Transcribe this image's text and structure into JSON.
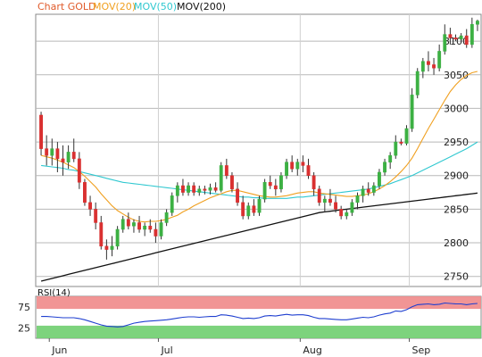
{
  "chart_data": [
    {
      "type": "candlestick",
      "legend": [
        {
          "name": "Chart GOLD",
          "color": "#e05a2a"
        },
        {
          "name": "MOV(20)",
          "color": "#f0a020"
        },
        {
          "name": "MOV(50)",
          "color": "#30c8d0"
        },
        {
          "name": "MOV(200)",
          "color": "#111111"
        }
      ],
      "ylim": [
        2735,
        3140
      ],
      "yticks": [
        2750,
        2800,
        2850,
        2900,
        2950,
        3000,
        3050,
        3100
      ],
      "grid": true,
      "y_axis_side": "right",
      "colors": {
        "up": "#3cb043",
        "down": "#d93030"
      },
      "candles": [
        [
          2990,
          2995,
          2930,
          2940
        ],
        [
          2940,
          2960,
          2915,
          2930
        ],
        [
          2930,
          2955,
          2915,
          2940
        ],
        [
          2940,
          2950,
          2905,
          2925
        ],
        [
          2925,
          2945,
          2900,
          2920
        ],
        [
          2920,
          2945,
          2910,
          2935
        ],
        [
          2935,
          2955,
          2920,
          2925
        ],
        [
          2925,
          2935,
          2880,
          2890
        ],
        [
          2890,
          2895,
          2855,
          2860
        ],
        [
          2860,
          2870,
          2840,
          2850
        ],
        [
          2850,
          2860,
          2820,
          2830
        ],
        [
          2830,
          2840,
          2790,
          2795
        ],
        [
          2795,
          2805,
          2775,
          2790
        ],
        [
          2790,
          2810,
          2780,
          2795
        ],
        [
          2795,
          2825,
          2790,
          2820
        ],
        [
          2820,
          2840,
          2815,
          2835
        ],
        [
          2835,
          2845,
          2820,
          2825
        ],
        [
          2825,
          2835,
          2815,
          2830
        ],
        [
          2830,
          2840,
          2815,
          2820
        ],
        [
          2820,
          2830,
          2810,
          2825
        ],
        [
          2825,
          2835,
          2815,
          2820
        ],
        [
          2820,
          2830,
          2800,
          2810
        ],
        [
          2810,
          2835,
          2805,
          2830
        ],
        [
          2830,
          2850,
          2825,
          2845
        ],
        [
          2845,
          2875,
          2840,
          2870
        ],
        [
          2870,
          2890,
          2860,
          2885
        ],
        [
          2885,
          2895,
          2870,
          2875
        ],
        [
          2875,
          2890,
          2870,
          2885
        ],
        [
          2885,
          2890,
          2870,
          2875
        ],
        [
          2875,
          2885,
          2870,
          2880
        ],
        [
          2880,
          2885,
          2872,
          2878
        ],
        [
          2878,
          2888,
          2872,
          2882
        ],
        [
          2882,
          2890,
          2875,
          2878
        ],
        [
          2878,
          2920,
          2875,
          2915
        ],
        [
          2915,
          2925,
          2895,
          2900
        ],
        [
          2900,
          2905,
          2875,
          2880
        ],
        [
          2880,
          2890,
          2855,
          2860
        ],
        [
          2860,
          2870,
          2835,
          2840
        ],
        [
          2840,
          2860,
          2835,
          2855
        ],
        [
          2855,
          2865,
          2840,
          2845
        ],
        [
          2845,
          2870,
          2840,
          2865
        ],
        [
          2865,
          2895,
          2860,
          2890
        ],
        [
          2890,
          2900,
          2880,
          2885
        ],
        [
          2885,
          2895,
          2870,
          2880
        ],
        [
          2880,
          2905,
          2875,
          2900
        ],
        [
          2900,
          2925,
          2895,
          2920
        ],
        [
          2920,
          2930,
          2905,
          2910
        ],
        [
          2910,
          2925,
          2900,
          2920
        ],
        [
          2920,
          2930,
          2905,
          2915
        ],
        [
          2915,
          2925,
          2895,
          2900
        ],
        [
          2900,
          2905,
          2870,
          2880
        ],
        [
          2880,
          2885,
          2855,
          2860
        ],
        [
          2860,
          2870,
          2845,
          2865
        ],
        [
          2865,
          2880,
          2855,
          2860
        ],
        [
          2860,
          2870,
          2845,
          2850
        ],
        [
          2850,
          2855,
          2835,
          2840
        ],
        [
          2840,
          2850,
          2835,
          2845
        ],
        [
          2845,
          2865,
          2840,
          2860
        ],
        [
          2860,
          2875,
          2850,
          2870
        ],
        [
          2870,
          2885,
          2860,
          2880
        ],
        [
          2880,
          2890,
          2870,
          2875
        ],
        [
          2875,
          2890,
          2870,
          2885
        ],
        [
          2885,
          2910,
          2880,
          2905
        ],
        [
          2905,
          2925,
          2900,
          2920
        ],
        [
          2920,
          2935,
          2910,
          2930
        ],
        [
          2930,
          2960,
          2925,
          2950
        ],
        [
          2950,
          2955,
          2945,
          2948
        ],
        [
          2948,
          2975,
          2945,
          2970
        ],
        [
          2970,
          3030,
          2965,
          3020
        ],
        [
          3020,
          3060,
          3015,
          3055
        ],
        [
          3055,
          3075,
          3045,
          3070
        ],
        [
          3070,
          3085,
          3055,
          3065
        ],
        [
          3065,
          3075,
          3050,
          3060
        ],
        [
          3060,
          3095,
          3055,
          3085
        ],
        [
          3085,
          3125,
          3080,
          3110
        ],
        [
          3110,
          3120,
          3095,
          3105
        ],
        [
          3105,
          3110,
          3100,
          3103
        ],
        [
          3103,
          3112,
          3098,
          3108
        ],
        [
          3108,
          3118,
          3090,
          3095
        ],
        [
          3095,
          3135,
          3090,
          3125
        ],
        [
          3125,
          3132,
          3115,
          3130
        ]
      ],
      "mov20": [
        2930,
        2928,
        2926,
        2923,
        2920,
        2916,
        2912,
        2906,
        2899,
        2891,
        2883,
        2873,
        2864,
        2855,
        2848,
        2843,
        2838,
        2834,
        2832,
        2831,
        2832,
        2832,
        2833,
        2835,
        2838,
        2841,
        2846,
        2850,
        2855,
        2859,
        2863,
        2867,
        2870,
        2873,
        2876,
        2878,
        2878,
        2876,
        2874,
        2872,
        2870,
        2869,
        2868,
        2868,
        2869,
        2870,
        2872,
        2874,
        2875,
        2876,
        2876,
        2874,
        2873,
        2872,
        2871,
        2870,
        2869,
        2869,
        2870,
        2871,
        2873,
        2876,
        2880,
        2885,
        2891,
        2898,
        2906,
        2915,
        2926,
        2940,
        2955,
        2970,
        2984,
        2998,
        3012,
        3025,
        3035,
        3043,
        3049,
        3053,
        3055
      ],
      "mov50": [
        2915,
        2914,
        2913,
        2912,
        2911,
        2909,
        2908,
        2906,
        2904,
        2902,
        2900,
        2898,
        2896,
        2894,
        2892,
        2890,
        2889,
        2888,
        2887,
        2886,
        2885,
        2884,
        2883,
        2882,
        2881,
        2880,
        2879,
        2878,
        2877,
        2876,
        2875,
        2874,
        2873,
        2872,
        2871,
        2870,
        2869,
        2868,
        2868,
        2867,
        2867,
        2866,
        2866,
        2866,
        2866,
        2866,
        2867,
        2868,
        2868,
        2869,
        2870,
        2871,
        2872,
        2873,
        2874,
        2875,
        2876,
        2877,
        2878,
        2879,
        2880,
        2882,
        2884,
        2886,
        2888,
        2891,
        2894,
        2897,
        2900,
        2904,
        2908,
        2912,
        2916,
        2920,
        2924,
        2928,
        2932,
        2936,
        2940,
        2945,
        2950
      ],
      "mov200": [
        2743,
        2745,
        2747,
        2749,
        2751,
        2753,
        2755,
        2757,
        2759,
        2761,
        2763,
        2765,
        2767,
        2769,
        2771,
        2773,
        2775,
        2777,
        2779,
        2781,
        2783,
        2785,
        2787,
        2789,
        2791,
        2793,
        2795,
        2797,
        2799,
        2801,
        2803,
        2805,
        2807,
        2809,
        2811,
        2813,
        2815,
        2817,
        2819,
        2821,
        2823,
        2825,
        2827,
        2829,
        2831,
        2833,
        2835,
        2837,
        2839,
        2841,
        2843,
        2845,
        2846,
        2847,
        2848,
        2849,
        2850,
        2851,
        2852,
        2853,
        2854,
        2855,
        2856,
        2857,
        2858,
        2859,
        2860,
        2861,
        2862,
        2863,
        2864,
        2865,
        2866,
        2867,
        2868,
        2869,
        2870,
        2871,
        2872,
        2873,
        2874
      ]
    },
    {
      "type": "line",
      "legend": [
        {
          "name": "RSI(14)",
          "color": "#1f3fd0"
        }
      ],
      "ylim": [
        0,
        100
      ],
      "yticks": [
        25,
        75
      ],
      "bands": [
        {
          "from": 70,
          "to": 100,
          "color": "#f08a8a"
        },
        {
          "from": 0,
          "to": 30,
          "color": "#6fce6f"
        }
      ],
      "rsi": [
        52,
        52,
        51,
        50,
        49,
        49,
        49,
        47,
        44,
        40,
        36,
        32,
        29,
        28,
        27,
        28,
        32,
        36,
        38,
        40,
        41,
        42,
        43,
        44,
        46,
        48,
        50,
        51,
        51,
        50,
        51,
        52,
        52,
        56,
        55,
        53,
        50,
        47,
        48,
        47,
        49,
        53,
        54,
        53,
        55,
        57,
        55,
        56,
        56,
        54,
        50,
        47,
        47,
        46,
        45,
        44,
        44,
        46,
        48,
        50,
        49,
        51,
        55,
        58,
        60,
        65,
        64,
        68,
        75,
        80,
        81,
        82,
        80,
        81,
        84,
        83,
        82,
        82,
        80,
        82,
        83
      ]
    }
  ],
  "x_axis": {
    "labels": [
      {
        "text": "Jun",
        "index": 2
      },
      {
        "text": "Jul",
        "index": 22
      },
      {
        "text": "Aug",
        "index": 48
      },
      {
        "text": "Sep",
        "index": 68
      }
    ]
  }
}
